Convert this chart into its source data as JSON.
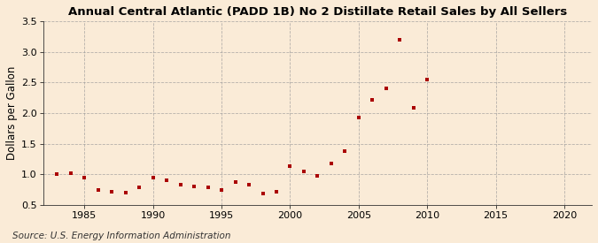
{
  "title": "Annual Central Atlantic (PADD 1B) No 2 Distillate Retail Sales by All Sellers",
  "ylabel": "Dollars per Gallon",
  "source": "Source: U.S. Energy Information Administration",
  "background_color": "#faebd7",
  "plot_bg_color": "#faebd7",
  "marker_color": "#aa0000",
  "years": [
    1983,
    1984,
    1985,
    1986,
    1987,
    1988,
    1989,
    1990,
    1991,
    1992,
    1993,
    1994,
    1995,
    1996,
    1997,
    1998,
    1999,
    2000,
    2001,
    2002,
    2003,
    2004,
    2005,
    2006,
    2007,
    2008,
    2009,
    2010
  ],
  "values": [
    1.0,
    1.02,
    0.95,
    0.75,
    0.72,
    0.7,
    0.78,
    0.95,
    0.9,
    0.83,
    0.8,
    0.78,
    0.75,
    0.88,
    0.83,
    0.68,
    0.72,
    1.13,
    1.04,
    0.97,
    1.18,
    1.38,
    1.93,
    2.21,
    2.4,
    3.2,
    2.08,
    2.55
  ],
  "xlim": [
    1982,
    2022
  ],
  "ylim": [
    0.5,
    3.5
  ],
  "xticks": [
    1985,
    1990,
    1995,
    2000,
    2005,
    2010,
    2015,
    2020
  ],
  "yticks": [
    0.5,
    1.0,
    1.5,
    2.0,
    2.5,
    3.0,
    3.5
  ],
  "title_fontsize": 9.5,
  "label_fontsize": 8.5,
  "tick_fontsize": 8,
  "source_fontsize": 7.5
}
